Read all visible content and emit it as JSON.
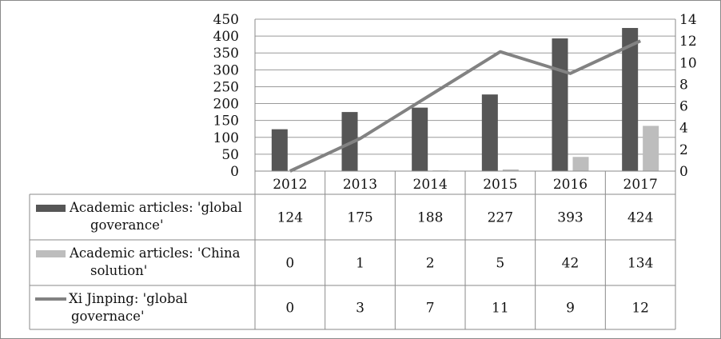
{
  "chart_data": {
    "type": "bar",
    "categories": [
      "2012",
      "2013",
      "2014",
      "2015",
      "2016",
      "2017"
    ],
    "series": [
      {
        "name": "Academic articles: 'global goverance'",
        "type": "bar",
        "axis": "left",
        "color": "#565656",
        "values": [
          124,
          175,
          188,
          227,
          393,
          424
        ]
      },
      {
        "name": "Academic articles: 'China solution'",
        "type": "bar",
        "axis": "left",
        "color": "#bdbdbd",
        "values": [
          0,
          1,
          2,
          5,
          42,
          134
        ]
      },
      {
        "name": "Xi Jinping: 'global governace'",
        "type": "line",
        "axis": "right",
        "color": "#828282",
        "values": [
          0,
          3,
          7,
          11,
          9,
          12
        ]
      }
    ],
    "y_left": {
      "ticks": [
        "0",
        "50",
        "100",
        "150",
        "200",
        "250",
        "300",
        "350",
        "400",
        "450"
      ],
      "range": [
        0,
        450
      ]
    },
    "y_right": {
      "ticks": [
        "0",
        "2",
        "4",
        "6",
        "8",
        "10",
        "12",
        "14"
      ],
      "range": [
        0,
        14
      ]
    },
    "grid": true,
    "legend": "data-table"
  }
}
